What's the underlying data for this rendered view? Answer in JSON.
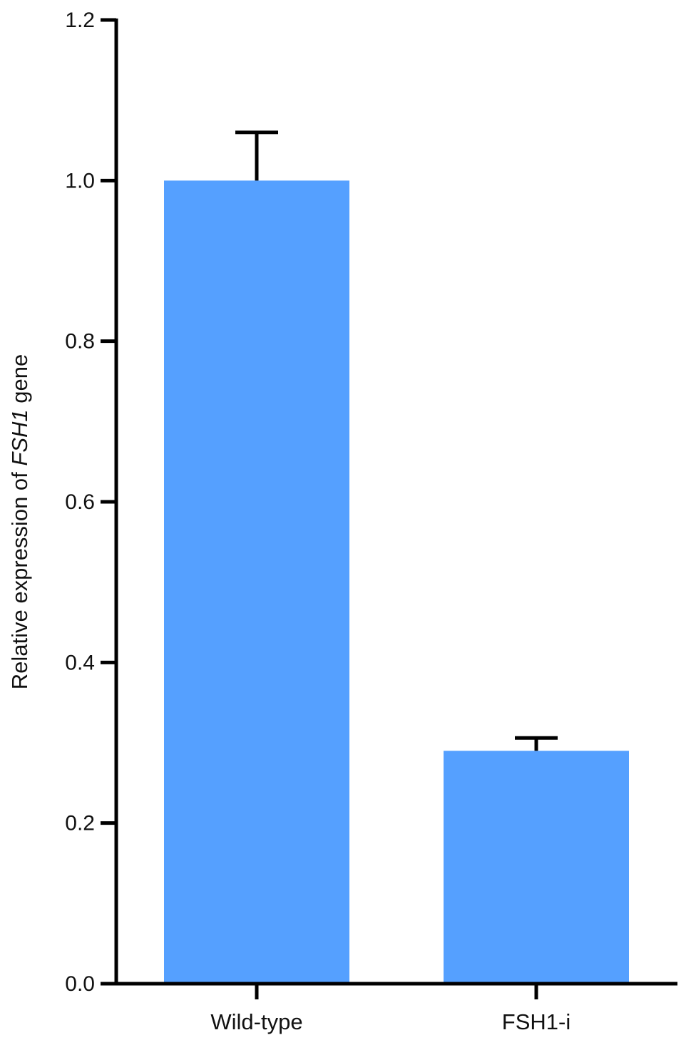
{
  "chart_data": {
    "type": "bar",
    "categories": [
      "Wild-type",
      "FSH1-i"
    ],
    "values": [
      1.0,
      0.29
    ],
    "errors": [
      0.06,
      0.016
    ],
    "title": "",
    "xlabel": "",
    "ylabel": {
      "prefix": "Relative expression of ",
      "gene": "FSH1",
      "suffix": " gene"
    },
    "ylim": [
      0,
      1.2
    ],
    "yticks": [
      "0.0",
      "0.2",
      "0.4",
      "0.6",
      "0.8",
      "1.0",
      "1.2"
    ],
    "bar_color": "#55a0ff",
    "grid": false,
    "legend": "none"
  }
}
